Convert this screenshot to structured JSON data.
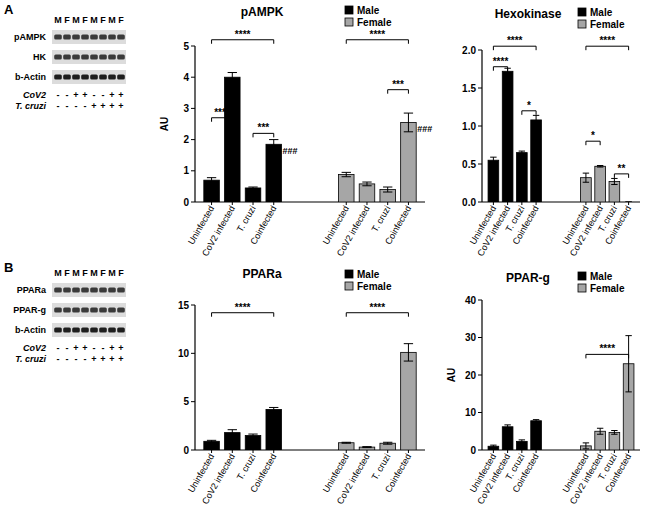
{
  "panel_labels": [
    "A",
    "B"
  ],
  "blots": [
    {
      "rows": [
        "pAMPK",
        "HK",
        "b-Actin"
      ],
      "lanes": [
        "M",
        "F",
        "M",
        "F",
        "M",
        "F",
        "M",
        "F"
      ],
      "conditions": [
        {
          "label": "CoV2",
          "signs": [
            "-",
            "-",
            "+",
            "+",
            "-",
            "-",
            "+",
            "+"
          ]
        },
        {
          "label": "T. cruzi",
          "signs": [
            "-",
            "-",
            "-",
            "-",
            "+",
            "+",
            "+",
            "+"
          ]
        }
      ]
    },
    {
      "rows": [
        "PPARa",
        "PPAR-g",
        "b-Actin"
      ],
      "lanes": [
        "M",
        "F",
        "M",
        "F",
        "M",
        "F",
        "M",
        "F"
      ],
      "conditions": [
        {
          "label": "CoV2",
          "signs": [
            "-",
            "-",
            "+",
            "+",
            "-",
            "-",
            "+",
            "+"
          ]
        },
        {
          "label": "T. cruzi",
          "signs": [
            "-",
            "-",
            "-",
            "-",
            "+",
            "+",
            "+",
            "+"
          ]
        }
      ]
    }
  ],
  "chart_data": [
    {
      "type": "bar",
      "title": "pAMPK",
      "y_label": "AU",
      "legend": "top-right",
      "categories": [
        "Uninfected",
        "CoV2 infected",
        "T. cruzi",
        "Coinfected",
        "Uninfected",
        "CoV2 infected",
        "T. cruzi",
        "Coinfected"
      ],
      "series": [
        {
          "name": "Male",
          "color": "#000000",
          "values": [
            0.7,
            4.0,
            0.45,
            1.85,
            null,
            null,
            null,
            null
          ],
          "errors": [
            0.08,
            0.15,
            0.03,
            0.15,
            null,
            null,
            null,
            null
          ]
        },
        {
          "name": "Female",
          "color": "#a6a6a6",
          "values": [
            null,
            null,
            null,
            null,
            0.88,
            0.58,
            0.4,
            2.55
          ],
          "errors": [
            null,
            null,
            null,
            null,
            0.07,
            0.06,
            0.08,
            0.3
          ]
        }
      ],
      "ylim": [
        0,
        5
      ],
      "yticks": [
        0,
        1,
        2,
        3,
        4,
        5
      ],
      "annotations": [
        {
          "from": 0,
          "to": 1,
          "y": 2.7,
          "text": "****"
        },
        {
          "from": 2,
          "to": 3,
          "y": 2.2,
          "text": "***"
        },
        {
          "from": 0,
          "to": 3,
          "y": 5.2,
          "text": "****"
        },
        {
          "at": 3,
          "text": "###"
        },
        {
          "from": 4,
          "to": 7,
          "y": 5.2,
          "text": "****"
        },
        {
          "from": 6,
          "to": 7,
          "y": 3.6,
          "text": "***"
        },
        {
          "at": 7,
          "text": "###"
        }
      ]
    },
    {
      "type": "bar",
      "title": "Hexokinase",
      "legend": "top-right",
      "categories": [
        "Uninfected",
        "CoV2 infected",
        "T. cruzi",
        "Coinfected",
        "Uninfected",
        "CoV2 infected",
        "T. cruzi",
        "Coinfected"
      ],
      "series": [
        {
          "name": "Male",
          "color": "#000000",
          "values": [
            0.55,
            1.72,
            0.65,
            1.08,
            null,
            null,
            null,
            null
          ],
          "errors": [
            0.04,
            0.04,
            0.02,
            0.06,
            null,
            null,
            null,
            null
          ]
        },
        {
          "name": "Female",
          "color": "#a6a6a6",
          "values": [
            null,
            null,
            null,
            null,
            0.32,
            0.47,
            0.27,
            0
          ],
          "errors": [
            null,
            null,
            null,
            null,
            0.06,
            0.01,
            0.04,
            0
          ]
        }
      ],
      "ylim": [
        0,
        2
      ],
      "yticks": [
        {
          "value": 0,
          "label": "0.0"
        },
        {
          "value": 0.5,
          "label": "0.5"
        },
        {
          "value": 1,
          "label": "1.0"
        },
        {
          "value": 1.5,
          "label": "1.5"
        },
        {
          "value": 2,
          "label": "2.0"
        }
      ],
      "annotations": [
        {
          "from": 0,
          "to": 1,
          "y": 1.78,
          "text": "****"
        },
        {
          "from": 2,
          "to": 3,
          "y": 1.2,
          "text": "*"
        },
        {
          "from": 0,
          "to": 3,
          "y": 2.05,
          "text": "****"
        },
        {
          "from": 4,
          "to": 5,
          "y": 0.8,
          "text": "*"
        },
        {
          "from": 4,
          "to": 7,
          "y": 2.05,
          "text": "****"
        },
        {
          "from": 6,
          "to": 7,
          "y": 0.37,
          "text": "**"
        }
      ]
    },
    {
      "type": "bar",
      "title": "PPARa",
      "legend": "top-right",
      "categories": [
        "Uninfected",
        "CoV2 infected",
        "T. cruzi",
        "Coinfected",
        "Uninfected",
        "CoV2 infected",
        "T. cruzi",
        "Coinfected"
      ],
      "series": [
        {
          "name": "Male",
          "color": "#000000",
          "values": [
            0.9,
            1.8,
            1.5,
            4.2,
            null,
            null,
            null,
            null
          ],
          "errors": [
            0.1,
            0.3,
            0.15,
            0.2,
            null,
            null,
            null,
            null
          ]
        },
        {
          "name": "Female",
          "color": "#a6a6a6",
          "values": [
            null,
            null,
            null,
            null,
            0.75,
            0.3,
            0.7,
            10.1
          ],
          "errors": [
            null,
            null,
            null,
            null,
            0.05,
            0.05,
            0.1,
            0.9
          ]
        }
      ],
      "ylim": [
        0,
        15
      ],
      "yticks": [
        0,
        5,
        10,
        15
      ],
      "annotations": [
        {
          "from": 0,
          "to": 3,
          "y": 14.2,
          "text": "****"
        },
        {
          "from": 4,
          "to": 7,
          "y": 14.2,
          "text": "****"
        }
      ]
    },
    {
      "type": "bar",
      "title": "PPAR-g",
      "y_label": "AU",
      "legend": "top-right",
      "categories": [
        "Uninfected",
        "CoV2 infected",
        "T. cruzi",
        "Coinfected",
        "Uninfected",
        "CoV2 infected",
        "T. cruzi",
        "Coinfected"
      ],
      "series": [
        {
          "name": "Male",
          "color": "#000000",
          "values": [
            1.0,
            6.2,
            2.3,
            7.8,
            null,
            null,
            null,
            null
          ],
          "errors": [
            0.3,
            0.5,
            0.4,
            0.3,
            null,
            null,
            null,
            null
          ]
        },
        {
          "name": "Female",
          "color": "#a6a6a6",
          "values": [
            null,
            null,
            null,
            null,
            1.1,
            5.0,
            4.7,
            23
          ],
          "errors": [
            null,
            null,
            null,
            null,
            0.8,
            0.8,
            0.5,
            7.5
          ]
        }
      ],
      "ylim": [
        0,
        40
      ],
      "yticks": [
        0,
        10,
        20,
        30,
        40
      ],
      "annotations": [
        {
          "from": 4,
          "to": 7,
          "y": 25.5,
          "text": "****"
        }
      ]
    }
  ]
}
